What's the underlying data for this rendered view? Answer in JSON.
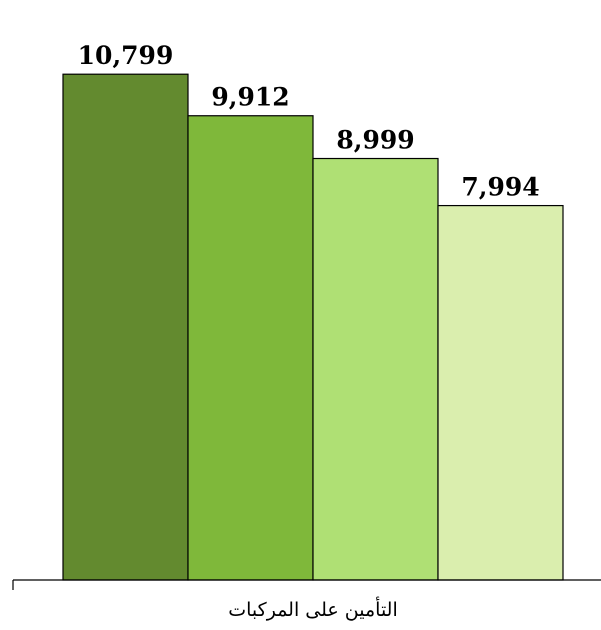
{
  "chart_data": {
    "type": "bar",
    "categories": [
      "التأمين على المركبات"
    ],
    "series": [
      {
        "values": [
          10799
        ],
        "color": "#638a2f"
      },
      {
        "values": [
          9912
        ],
        "color": "#7fb83a"
      },
      {
        "values": [
          8999
        ],
        "color": "#afe074"
      },
      {
        "values": [
          7994
        ],
        "color": "#daeeae"
      }
    ],
    "value_labels": [
      "10,799",
      "9,912",
      "8,999",
      "7,994"
    ],
    "ylim": [
      0,
      11700
    ],
    "grid": false,
    "legend": "none",
    "bar_outline_color": "#000000"
  }
}
